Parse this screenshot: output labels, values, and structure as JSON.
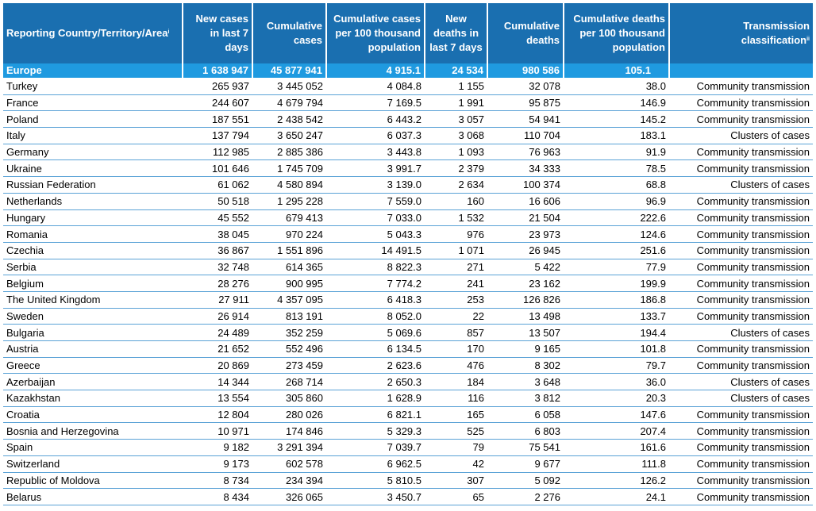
{
  "headers": {
    "country": "Reporting Country/Territory/Area",
    "country_sup": "i",
    "new_cases": "New cases in last 7 days",
    "cum_cases": "Cumulative cases",
    "cum_cases_100k": "Cumulative cases per 100 thousand population",
    "new_deaths": "New deaths in last 7 days",
    "cum_deaths": "Cumulative deaths",
    "cum_deaths_100k": "Cumulative deaths per 100 thousand population",
    "transmission": "Transmission classification",
    "transmission_sup": "ii"
  },
  "region": {
    "name": "Europe",
    "new_cases": "1 638 947",
    "cum_cases": "45 877 941",
    "cum_cases_100k": "4 915.1",
    "new_deaths": "24 534",
    "cum_deaths": "980 586",
    "cum_deaths_100k": "105.1",
    "transmission": ""
  },
  "rows": [
    {
      "country": "Turkey",
      "new_cases": "265 937",
      "cum_cases": "3 445 052",
      "cum_cases_100k": "4 084.8",
      "new_deaths": "1 155",
      "cum_deaths": "32 078",
      "cum_deaths_100k": "38.0",
      "transmission": "Community transmission"
    },
    {
      "country": "France",
      "new_cases": "244 607",
      "cum_cases": "4 679 794",
      "cum_cases_100k": "7 169.5",
      "new_deaths": "1 991",
      "cum_deaths": "95 875",
      "cum_deaths_100k": "146.9",
      "transmission": "Community transmission"
    },
    {
      "country": "Poland",
      "new_cases": "187 551",
      "cum_cases": "2 438 542",
      "cum_cases_100k": "6 443.2",
      "new_deaths": "3 057",
      "cum_deaths": "54 941",
      "cum_deaths_100k": "145.2",
      "transmission": "Community transmission"
    },
    {
      "country": "Italy",
      "new_cases": "137 794",
      "cum_cases": "3 650 247",
      "cum_cases_100k": "6 037.3",
      "new_deaths": "3 068",
      "cum_deaths": "110 704",
      "cum_deaths_100k": "183.1",
      "transmission": "Clusters of cases"
    },
    {
      "country": "Germany",
      "new_cases": "112 985",
      "cum_cases": "2 885 386",
      "cum_cases_100k": "3 443.8",
      "new_deaths": "1 093",
      "cum_deaths": "76 963",
      "cum_deaths_100k": "91.9",
      "transmission": "Community transmission"
    },
    {
      "country": "Ukraine",
      "new_cases": "101 646",
      "cum_cases": "1 745 709",
      "cum_cases_100k": "3 991.7",
      "new_deaths": "2 379",
      "cum_deaths": "34 333",
      "cum_deaths_100k": "78.5",
      "transmission": "Community transmission"
    },
    {
      "country": "Russian Federation",
      "new_cases": "61 062",
      "cum_cases": "4 580 894",
      "cum_cases_100k": "3 139.0",
      "new_deaths": "2 634",
      "cum_deaths": "100 374",
      "cum_deaths_100k": "68.8",
      "transmission": "Clusters of cases"
    },
    {
      "country": "Netherlands",
      "new_cases": "50 518",
      "cum_cases": "1 295 228",
      "cum_cases_100k": "7 559.0",
      "new_deaths": "160",
      "cum_deaths": "16 606",
      "cum_deaths_100k": "96.9",
      "transmission": "Community transmission"
    },
    {
      "country": "Hungary",
      "new_cases": "45 552",
      "cum_cases": "679 413",
      "cum_cases_100k": "7 033.0",
      "new_deaths": "1 532",
      "cum_deaths": "21 504",
      "cum_deaths_100k": "222.6",
      "transmission": "Community transmission"
    },
    {
      "country": "Romania",
      "new_cases": "38 045",
      "cum_cases": "970 224",
      "cum_cases_100k": "5 043.3",
      "new_deaths": "976",
      "cum_deaths": "23 973",
      "cum_deaths_100k": "124.6",
      "transmission": "Community transmission"
    },
    {
      "country": "Czechia",
      "new_cases": "36 867",
      "cum_cases": "1 551 896",
      "cum_cases_100k": "14 491.5",
      "new_deaths": "1 071",
      "cum_deaths": "26 945",
      "cum_deaths_100k": "251.6",
      "transmission": "Community transmission"
    },
    {
      "country": "Serbia",
      "new_cases": "32 748",
      "cum_cases": "614 365",
      "cum_cases_100k": "8 822.3",
      "new_deaths": "271",
      "cum_deaths": "5 422",
      "cum_deaths_100k": "77.9",
      "transmission": "Community transmission"
    },
    {
      "country": "Belgium",
      "new_cases": "28 276",
      "cum_cases": "900 995",
      "cum_cases_100k": "7 774.2",
      "new_deaths": "241",
      "cum_deaths": "23 162",
      "cum_deaths_100k": "199.9",
      "transmission": "Community transmission"
    },
    {
      "country": "The United Kingdom",
      "new_cases": "27 911",
      "cum_cases": "4 357 095",
      "cum_cases_100k": "6 418.3",
      "new_deaths": "253",
      "cum_deaths": "126 826",
      "cum_deaths_100k": "186.8",
      "transmission": "Community transmission"
    },
    {
      "country": "Sweden",
      "new_cases": "26 914",
      "cum_cases": "813 191",
      "cum_cases_100k": "8 052.0",
      "new_deaths": "22",
      "cum_deaths": "13 498",
      "cum_deaths_100k": "133.7",
      "transmission": "Community transmission"
    },
    {
      "country": "Bulgaria",
      "new_cases": "24 489",
      "cum_cases": "352 259",
      "cum_cases_100k": "5 069.6",
      "new_deaths": "857",
      "cum_deaths": "13 507",
      "cum_deaths_100k": "194.4",
      "transmission": "Clusters of cases"
    },
    {
      "country": "Austria",
      "new_cases": "21 652",
      "cum_cases": "552 496",
      "cum_cases_100k": "6 134.5",
      "new_deaths": "170",
      "cum_deaths": "9 165",
      "cum_deaths_100k": "101.8",
      "transmission": "Community transmission"
    },
    {
      "country": "Greece",
      "new_cases": "20 869",
      "cum_cases": "273 459",
      "cum_cases_100k": "2 623.6",
      "new_deaths": "476",
      "cum_deaths": "8 302",
      "cum_deaths_100k": "79.7",
      "transmission": "Community transmission"
    },
    {
      "country": "Azerbaijan",
      "new_cases": "14 344",
      "cum_cases": "268 714",
      "cum_cases_100k": "2 650.3",
      "new_deaths": "184",
      "cum_deaths": "3 648",
      "cum_deaths_100k": "36.0",
      "transmission": "Clusters of cases"
    },
    {
      "country": "Kazakhstan",
      "new_cases": "13 554",
      "cum_cases": "305 860",
      "cum_cases_100k": "1 628.9",
      "new_deaths": "116",
      "cum_deaths": "3 812",
      "cum_deaths_100k": "20.3",
      "transmission": "Clusters of cases"
    },
    {
      "country": "Croatia",
      "new_cases": "12 804",
      "cum_cases": "280 026",
      "cum_cases_100k": "6 821.1",
      "new_deaths": "165",
      "cum_deaths": "6 058",
      "cum_deaths_100k": "147.6",
      "transmission": "Community transmission"
    },
    {
      "country": "Bosnia and Herzegovina",
      "new_cases": "10 971",
      "cum_cases": "174 846",
      "cum_cases_100k": "5 329.3",
      "new_deaths": "525",
      "cum_deaths": "6 803",
      "cum_deaths_100k": "207.4",
      "transmission": "Community transmission"
    },
    {
      "country": "Spain",
      "new_cases": "9 182",
      "cum_cases": "3 291 394",
      "cum_cases_100k": "7 039.7",
      "new_deaths": "79",
      "cum_deaths": "75 541",
      "cum_deaths_100k": "161.6",
      "transmission": "Community transmission"
    },
    {
      "country": "Switzerland",
      "new_cases": "9 173",
      "cum_cases": "602 578",
      "cum_cases_100k": "6 962.5",
      "new_deaths": "42",
      "cum_deaths": "9 677",
      "cum_deaths_100k": "111.8",
      "transmission": "Community transmission"
    },
    {
      "country": "Republic of Moldova",
      "new_cases": "8 734",
      "cum_cases": "234 394",
      "cum_cases_100k": "5 810.5",
      "new_deaths": "307",
      "cum_deaths": "5 092",
      "cum_deaths_100k": "126.2",
      "transmission": "Community transmission"
    },
    {
      "country": "Belarus",
      "new_cases": "8 434",
      "cum_cases": "326 065",
      "cum_cases_100k": "3 450.7",
      "new_deaths": "65",
      "cum_deaths": "2 276",
      "cum_deaths_100k": "24.1",
      "transmission": "Community transmission"
    }
  ]
}
